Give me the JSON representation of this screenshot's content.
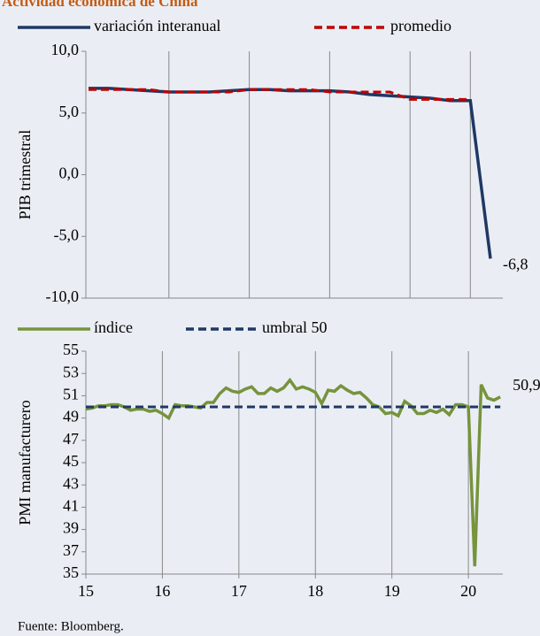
{
  "title": "Actividad económica de China",
  "source": "Fuente: Bloomberg.",
  "chart_data": [
    {
      "type": "line",
      "y_label": "PIB trimestral",
      "categories": [
        null,
        null,
        null,
        null,
        null,
        null,
        null,
        null,
        null,
        null,
        null,
        null,
        null,
        null,
        null,
        null,
        null,
        null,
        null,
        null,
        null
      ],
      "series": [
        {
          "name": "variación interanual",
          "color": "#1f3864",
          "dash": false,
          "values": [
            7.0,
            7.0,
            6.9,
            6.8,
            6.7,
            6.7,
            6.7,
            6.8,
            6.9,
            6.9,
            6.8,
            6.8,
            6.8,
            6.7,
            6.5,
            6.4,
            6.3,
            6.2,
            6.0,
            6.0,
            -6.8
          ],
          "value_labels": [
            null,
            null,
            null,
            null,
            null,
            null,
            null,
            null,
            null,
            null,
            null,
            null,
            null,
            null,
            null,
            null,
            null,
            null,
            null,
            null,
            "-6,8"
          ]
        },
        {
          "name": "promedio",
          "color": "#c00000",
          "dash": true,
          "values": [
            6.9,
            6.9,
            6.9,
            6.9,
            6.7,
            6.7,
            6.7,
            6.7,
            6.9,
            6.9,
            6.9,
            6.9,
            6.7,
            6.7,
            6.7,
            6.7,
            6.1,
            6.1,
            6.1,
            6.1,
            null
          ]
        }
      ],
      "ylim": [
        -10,
        10
      ],
      "yticks": [
        {
          "value": 10,
          "label": "10,0"
        },
        {
          "value": 5,
          "label": "5,0"
        },
        {
          "value": 0,
          "label": "0,0"
        },
        {
          "value": -5,
          "label": "-5,0"
        },
        {
          "value": -10,
          "label": "-10,0"
        }
      ]
    },
    {
      "type": "line",
      "y_label": "PMI manufacturero",
      "series": [
        {
          "name": "índice",
          "color": "#77933c",
          "dash": false,
          "x": [
            15,
            15.083,
            15.167,
            15.25,
            15.333,
            15.417,
            15.5,
            15.583,
            15.667,
            15.75,
            15.833,
            15.917,
            16,
            16.083,
            16.167,
            16.25,
            16.333,
            16.417,
            16.5,
            16.583,
            16.667,
            16.75,
            16.833,
            16.917,
            17,
            17.083,
            17.167,
            17.25,
            17.333,
            17.417,
            17.5,
            17.583,
            17.667,
            17.75,
            17.833,
            17.917,
            18,
            18.083,
            18.167,
            18.25,
            18.333,
            18.417,
            18.5,
            18.583,
            18.667,
            18.75,
            18.833,
            18.917,
            19,
            19.083,
            19.167,
            19.25,
            19.333,
            19.417,
            19.5,
            19.583,
            19.667,
            19.75,
            19.833,
            19.917,
            20,
            20.083,
            20.167,
            20.25,
            20.333,
            20.417
          ],
          "values": [
            49.8,
            49.9,
            50.1,
            50.1,
            50.2,
            50.2,
            50.0,
            49.7,
            49.8,
            49.8,
            49.6,
            49.7,
            49.4,
            49.0,
            50.2,
            50.1,
            50.1,
            50.0,
            49.9,
            50.4,
            50.4,
            51.2,
            51.7,
            51.4,
            51.3,
            51.6,
            51.8,
            51.2,
            51.2,
            51.7,
            51.4,
            51.7,
            52.4,
            51.6,
            51.8,
            51.6,
            51.3,
            50.3,
            51.5,
            51.4,
            51.9,
            51.5,
            51.2,
            51.3,
            50.8,
            50.2,
            50.0,
            49.4,
            49.5,
            49.2,
            50.5,
            50.1,
            49.4,
            49.4,
            49.7,
            49.5,
            49.8,
            49.3,
            50.2,
            50.2,
            50.0,
            35.7,
            52.0,
            50.8,
            50.6,
            50.9
          ],
          "value_labels": [
            null,
            null,
            null,
            null,
            null,
            null,
            null,
            null,
            null,
            null,
            null,
            null,
            null,
            null,
            null,
            null,
            null,
            null,
            null,
            null,
            null,
            null,
            null,
            null,
            null,
            null,
            null,
            null,
            null,
            null,
            null,
            null,
            null,
            null,
            null,
            null,
            null,
            null,
            null,
            null,
            null,
            null,
            null,
            null,
            null,
            null,
            null,
            null,
            null,
            null,
            null,
            null,
            null,
            null,
            null,
            null,
            null,
            null,
            null,
            null,
            null,
            null,
            null,
            null,
            null,
            "50,9"
          ]
        },
        {
          "name": "umbral 50",
          "color": "#1f3864",
          "dash": true,
          "x": [
            15,
            20.417
          ],
          "values": [
            50,
            50
          ]
        }
      ],
      "xlim": [
        15,
        20.45
      ],
      "xticks": [
        15,
        16,
        17,
        18,
        19,
        20
      ],
      "ylim": [
        35,
        55
      ],
      "yticks": [
        55,
        53,
        51,
        49,
        47,
        45,
        43,
        41,
        39,
        37,
        35
      ],
      "grid": true
    }
  ]
}
